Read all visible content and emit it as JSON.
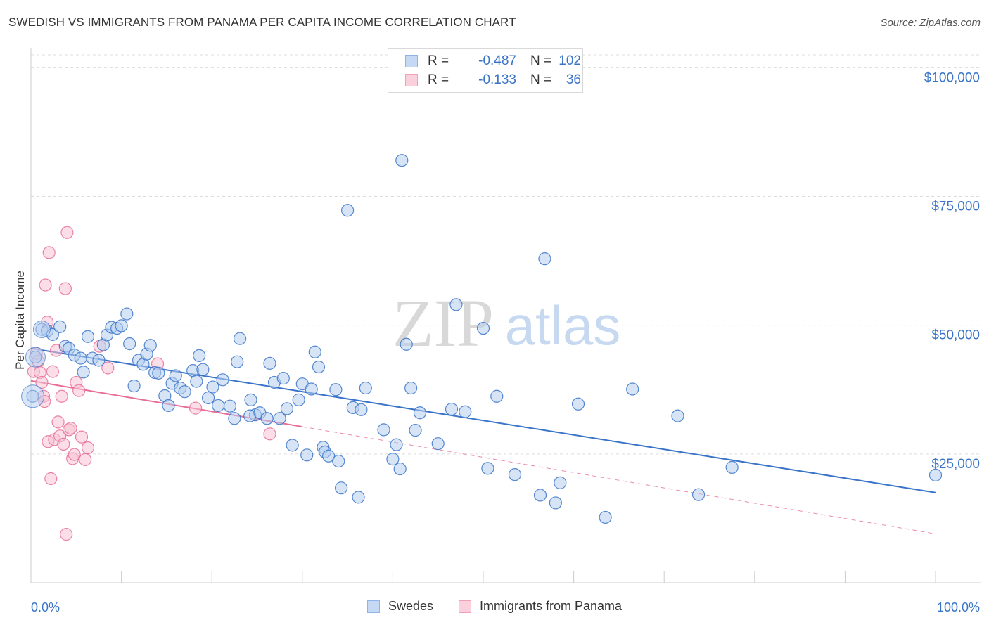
{
  "title": "SWEDISH VS IMMIGRANTS FROM PANAMA PER CAPITA INCOME CORRELATION CHART",
  "source": "Source: ZipAtlas.com",
  "watermark": {
    "zip": "ZIP",
    "atlas": "atlas"
  },
  "legend": {
    "r_label": "R =",
    "n_label": "N =",
    "rows": [
      {
        "r": "-0.487",
        "n": "102",
        "color": "#8fb4e8",
        "fill": "#c5d8f4"
      },
      {
        "r": "-0.133",
        "n": "36",
        "color": "#f0a0b8",
        "fill": "#f9d0dc"
      }
    ]
  },
  "bottom_legend": [
    "Swedes",
    "Immigrants from Panama"
  ],
  "chart_data": {
    "type": "scatter",
    "xlabel": "",
    "ylabel": "Per Capita Income",
    "x_tick_labels": [
      "0.0%",
      "100.0%"
    ],
    "y_tick_labels": [
      "$25,000",
      "$50,000",
      "$75,000",
      "$100,000"
    ],
    "y_ticks": [
      25000,
      50000,
      75000,
      100000
    ],
    "xlim": [
      0,
      100
    ],
    "ylim": [
      0,
      102500
    ],
    "grid": true,
    "colors": {
      "swedes": "#3a74c9",
      "swedes_fill": "#b4cdef",
      "panama": "#e86e98",
      "panama_fill": "#f7c3d3",
      "axis_text": "#3a74c9"
    },
    "series": [
      {
        "name": "Swedes",
        "trend": {
          "x": [
            0,
            100
          ],
          "y": [
            45500,
            17500
          ],
          "dashed_from": null
        },
        "points": [
          [
            0.2,
            36200
          ],
          [
            0.5,
            43800
          ],
          [
            1.2,
            49200
          ],
          [
            1.8,
            48900
          ],
          [
            2.4,
            48200
          ],
          [
            3.2,
            49700
          ],
          [
            3.8,
            45900
          ],
          [
            4.2,
            45500
          ],
          [
            4.8,
            44200
          ],
          [
            5.5,
            43600
          ],
          [
            5.8,
            40900
          ],
          [
            6.3,
            47800
          ],
          [
            6.8,
            43600
          ],
          [
            7.5,
            43200
          ],
          [
            8.0,
            46200
          ],
          [
            8.4,
            48100
          ],
          [
            8.9,
            49600
          ],
          [
            9.5,
            49400
          ],
          [
            10.0,
            49900
          ],
          [
            10.6,
            52200
          ],
          [
            10.9,
            46400
          ],
          [
            11.4,
            38200
          ],
          [
            11.9,
            43200
          ],
          [
            12.4,
            42400
          ],
          [
            12.8,
            44400
          ],
          [
            13.2,
            46100
          ],
          [
            13.7,
            40800
          ],
          [
            14.1,
            40700
          ],
          [
            14.8,
            36300
          ],
          [
            15.2,
            34400
          ],
          [
            15.6,
            38700
          ],
          [
            16.0,
            40200
          ],
          [
            16.5,
            37800
          ],
          [
            17.0,
            37100
          ],
          [
            17.9,
            41200
          ],
          [
            18.3,
            39100
          ],
          [
            18.6,
            44100
          ],
          [
            19.0,
            41400
          ],
          [
            19.6,
            35900
          ],
          [
            20.1,
            38000
          ],
          [
            20.7,
            34400
          ],
          [
            21.2,
            39400
          ],
          [
            22.0,
            34300
          ],
          [
            22.5,
            31900
          ],
          [
            22.8,
            42900
          ],
          [
            23.1,
            47400
          ],
          [
            24.3,
            35500
          ],
          [
            24.8,
            32600
          ],
          [
            24.2,
            32400
          ],
          [
            25.3,
            33000
          ],
          [
            26.1,
            31900
          ],
          [
            26.4,
            42600
          ],
          [
            26.9,
            38900
          ],
          [
            27.5,
            31900
          ],
          [
            27.9,
            39700
          ],
          [
            28.3,
            33800
          ],
          [
            28.9,
            26700
          ],
          [
            29.6,
            35500
          ],
          [
            30.0,
            38600
          ],
          [
            30.5,
            24800
          ],
          [
            31.0,
            37600
          ],
          [
            31.4,
            44800
          ],
          [
            31.8,
            41900
          ],
          [
            32.3,
            26300
          ],
          [
            32.5,
            25400
          ],
          [
            32.9,
            24600
          ],
          [
            33.7,
            37500
          ],
          [
            34.0,
            23600
          ],
          [
            34.3,
            18400
          ],
          [
            35.0,
            72300
          ],
          [
            35.6,
            34000
          ],
          [
            36.2,
            16600
          ],
          [
            36.5,
            33600
          ],
          [
            37.0,
            37800
          ],
          [
            39.0,
            29700
          ],
          [
            40.0,
            24000
          ],
          [
            40.4,
            26800
          ],
          [
            40.8,
            22100
          ],
          [
            41.0,
            82000
          ],
          [
            41.5,
            46300
          ],
          [
            42.0,
            37800
          ],
          [
            42.5,
            29600
          ],
          [
            43.0,
            33000
          ],
          [
            45.0,
            27000
          ],
          [
            46.5,
            33700
          ],
          [
            47.0,
            54000
          ],
          [
            48.0,
            33200
          ],
          [
            50.0,
            49400
          ],
          [
            50.5,
            22200
          ],
          [
            51.5,
            36200
          ],
          [
            53.5,
            21000
          ],
          [
            56.3,
            17000
          ],
          [
            56.8,
            62900
          ],
          [
            58.0,
            15500
          ],
          [
            58.5,
            19400
          ],
          [
            60.5,
            34700
          ],
          [
            63.5,
            12700
          ],
          [
            66.5,
            37600
          ],
          [
            71.5,
            32400
          ],
          [
            73.8,
            17100
          ],
          [
            77.5,
            22400
          ],
          [
            100.0,
            20900
          ]
        ]
      },
      {
        "name": "Immigrants from Panama",
        "trend": {
          "x": [
            0,
            100
          ],
          "y": [
            39200,
            9500
          ],
          "dashed_from": 30
        },
        "points": [
          [
            0.3,
            41000
          ],
          [
            0.6,
            44500
          ],
          [
            0.8,
            43000
          ],
          [
            1.0,
            40800
          ],
          [
            1.2,
            38900
          ],
          [
            1.4,
            36200
          ],
          [
            1.5,
            35200
          ],
          [
            1.6,
            57800
          ],
          [
            1.8,
            50600
          ],
          [
            1.9,
            27400
          ],
          [
            2.0,
            64100
          ],
          [
            2.2,
            20200
          ],
          [
            2.4,
            41000
          ],
          [
            2.6,
            27800
          ],
          [
            2.8,
            45100
          ],
          [
            3.0,
            31200
          ],
          [
            3.2,
            28500
          ],
          [
            3.4,
            36200
          ],
          [
            3.6,
            26900
          ],
          [
            3.8,
            57100
          ],
          [
            3.9,
            9400
          ],
          [
            4.0,
            68000
          ],
          [
            4.2,
            29700
          ],
          [
            4.4,
            30000
          ],
          [
            4.6,
            24100
          ],
          [
            4.8,
            24900
          ],
          [
            5.0,
            38900
          ],
          [
            5.3,
            37300
          ],
          [
            5.6,
            28300
          ],
          [
            6.0,
            23900
          ],
          [
            6.3,
            26200
          ],
          [
            7.6,
            45900
          ],
          [
            8.5,
            41700
          ],
          [
            14.0,
            42500
          ],
          [
            18.2,
            33900
          ],
          [
            26.4,
            28900
          ]
        ]
      }
    ]
  }
}
